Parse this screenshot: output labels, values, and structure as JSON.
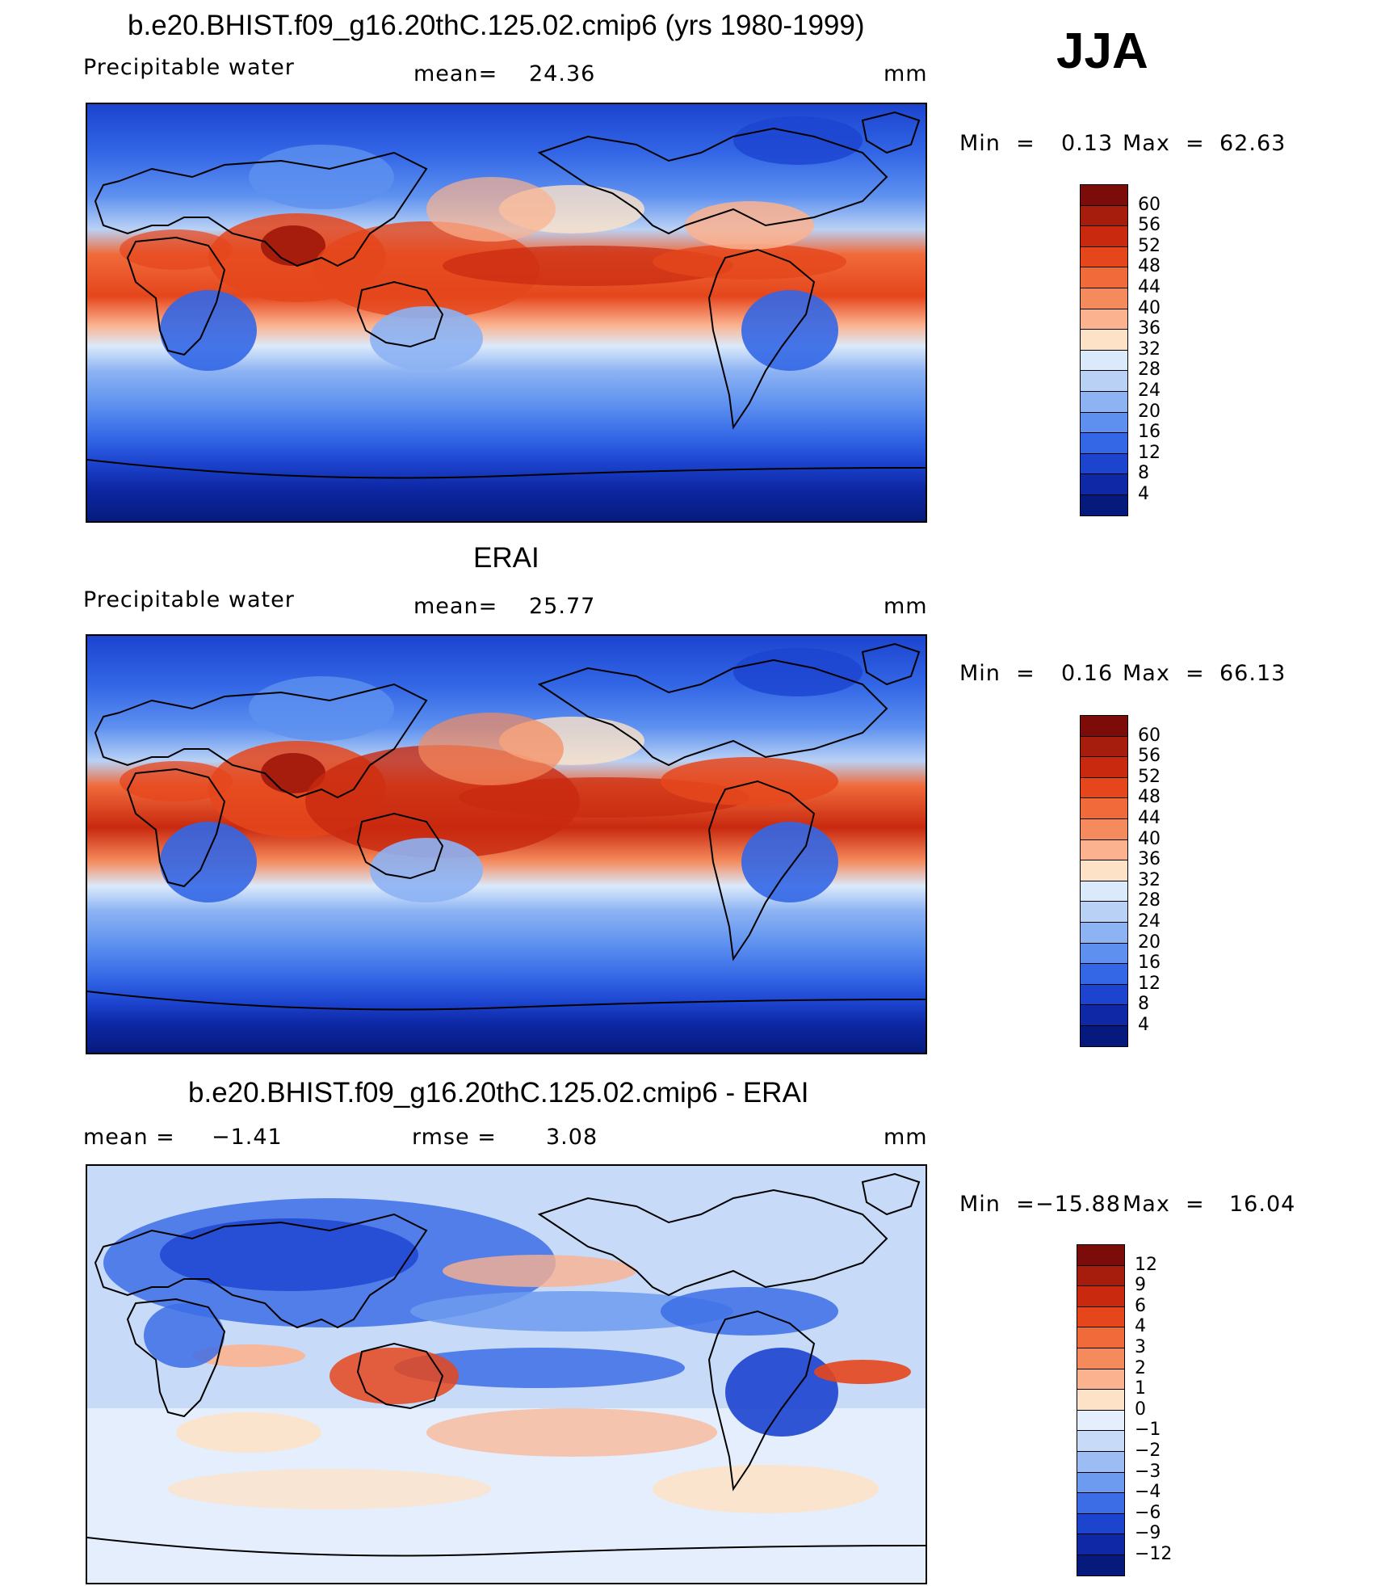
{
  "season": "JJA",
  "units": "mm",
  "panels": [
    {
      "title": "b.e20.BHIST.f09_g16.20thC.125.02.cmip6 (yrs 1980-1999)",
      "variable": "Precipitable water",
      "stat_label": "mean=",
      "stat_value": "24.36",
      "units": "mm",
      "min_label": "Min  =",
      "min_value": "0.13",
      "max_label": "Max  =",
      "max_value": "62.63",
      "colorbar_labels": [
        "60",
        "56",
        "52",
        "48",
        "44",
        "40",
        "36",
        "32",
        "28",
        "24",
        "20",
        "16",
        "12",
        "8",
        "4"
      ],
      "colorbar_colors": [
        "#7b0c0a",
        "#a61c0d",
        "#c8290f",
        "#e5461c",
        "#f06a3a",
        "#f58a5c",
        "#fbb28f",
        "#fde2c8",
        "#dbeafb",
        "#b9d1f5",
        "#8db3f3",
        "#5e91ef",
        "#3367e6",
        "#1c44cf",
        "#0e28a6",
        "#061a7d"
      ]
    },
    {
      "title": "ERAI",
      "variable": "Precipitable water",
      "stat_label": "mean=",
      "stat_value": "25.77",
      "units": "mm",
      "min_label": "Min  =",
      "min_value": "0.16",
      "max_label": "Max  =",
      "max_value": "66.13",
      "colorbar_labels": [
        "60",
        "56",
        "52",
        "48",
        "44",
        "40",
        "36",
        "32",
        "28",
        "24",
        "20",
        "16",
        "12",
        "8",
        "4"
      ],
      "colorbar_colors": [
        "#7b0c0a",
        "#a61c0d",
        "#c8290f",
        "#e5461c",
        "#f06a3a",
        "#f58a5c",
        "#fbb28f",
        "#fde2c8",
        "#dbeafb",
        "#b9d1f5",
        "#8db3f3",
        "#5e91ef",
        "#3367e6",
        "#1c44cf",
        "#0e28a6",
        "#061a7d"
      ]
    },
    {
      "title": "b.e20.BHIST.f09_g16.20thC.125.02.cmip6 - ERAI",
      "variable": "mean =",
      "variable_value": "−1.41",
      "stat_label": "rmse =",
      "stat_value": "3.08",
      "units": "mm",
      "min_label": "Min  =",
      "min_value": "−15.88",
      "max_label": "Max  =",
      "max_value": "16.04",
      "colorbar_labels": [
        "12",
        "9",
        "6",
        "4",
        "3",
        "2",
        "1",
        "0",
        "−1",
        "−2",
        "−3",
        "−4",
        "−6",
        "−9",
        "−12"
      ],
      "colorbar_colors": [
        "#7b0c0a",
        "#a61c0d",
        "#c8290f",
        "#e5461c",
        "#f06a3a",
        "#f58a5c",
        "#fbb28f",
        "#fde2c8",
        "#e4eefc",
        "#c7dbf9",
        "#9bbdf4",
        "#6d9bef",
        "#3c6de6",
        "#1c44cf",
        "#0e28a6",
        "#061a7d"
      ]
    }
  ]
}
